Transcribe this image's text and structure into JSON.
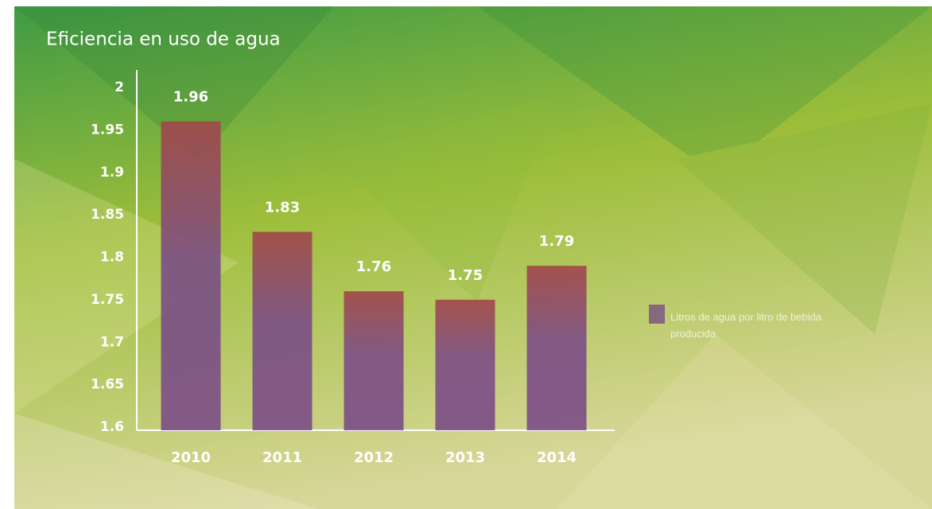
{
  "chart_data": {
    "type": "bar",
    "title": "Eficiencia en uso de agua",
    "categories": [
      "2010",
      "2011",
      "2012",
      "2013",
      "2014"
    ],
    "series": [
      {
        "name": "Litros de agua por litro de bebida producida",
        "color": "#7b4d86",
        "values": [
          1.96,
          1.83,
          1.76,
          1.75,
          1.79
        ]
      }
    ],
    "ylim": [
      1.6,
      2
    ],
    "yticks": [
      1.6,
      1.65,
      1.7,
      1.75,
      1.8,
      1.85,
      1.9,
      1.95,
      2
    ],
    "grid": false,
    "legend": "right"
  }
}
